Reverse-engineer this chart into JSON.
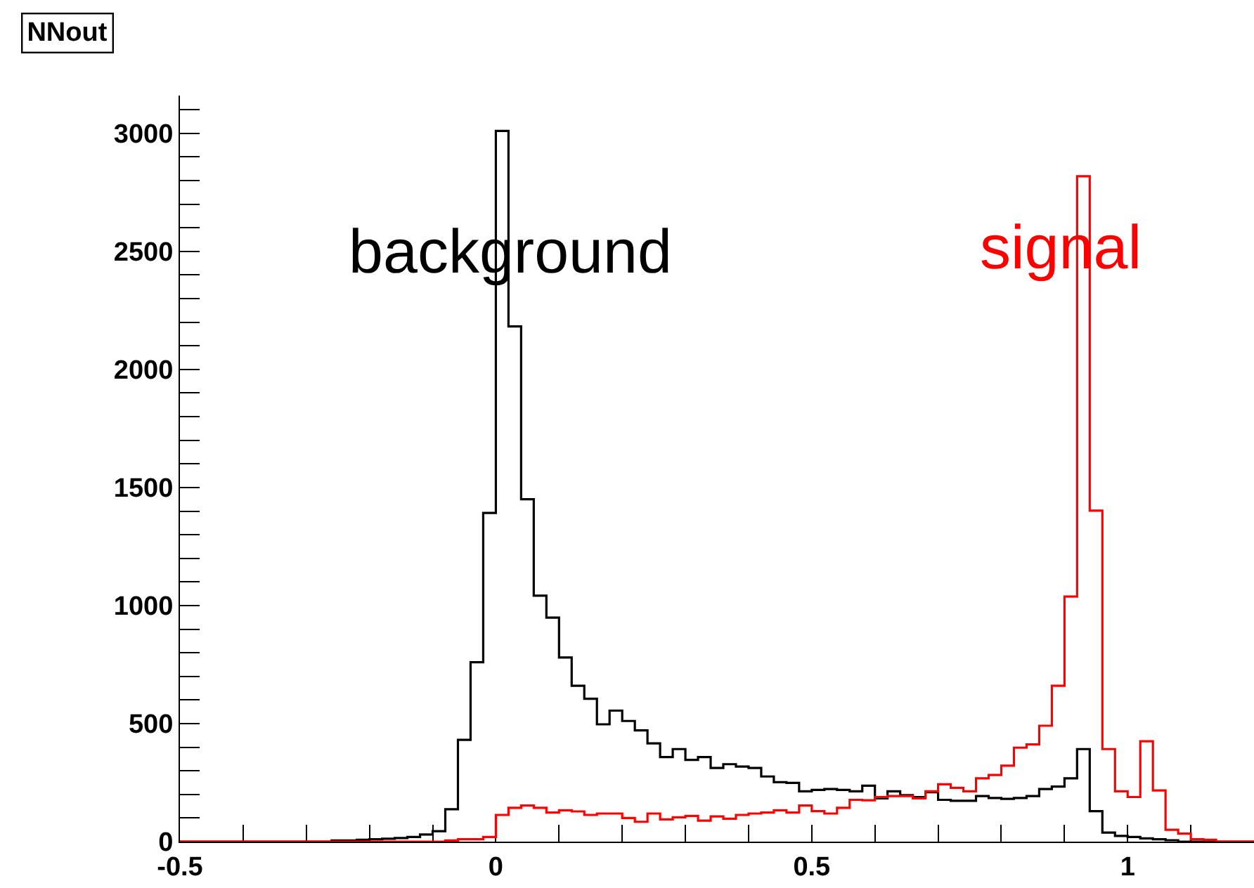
{
  "chart_data": {
    "type": "histogram",
    "title": "NNout",
    "bins": [
      -0.5,
      -0.48,
      -0.46,
      -0.44,
      -0.42,
      -0.4,
      -0.38,
      -0.36,
      -0.34,
      -0.32,
      -0.3,
      -0.28,
      -0.26,
      -0.24,
      -0.22,
      -0.2,
      -0.18,
      -0.16,
      -0.14,
      -0.12,
      -0.1,
      -0.08,
      -0.06,
      -0.04,
      -0.02,
      0,
      0.02,
      0.04,
      0.06,
      0.08,
      0.1,
      0.12,
      0.14,
      0.16,
      0.18,
      0.2,
      0.22,
      0.24,
      0.26,
      0.28,
      0.3,
      0.32,
      0.34,
      0.36,
      0.38,
      0.4,
      0.42,
      0.44,
      0.46,
      0.48,
      0.5,
      0.52,
      0.54,
      0.56,
      0.58,
      0.6,
      0.62,
      0.64,
      0.66,
      0.68,
      0.7,
      0.72,
      0.74,
      0.76,
      0.78,
      0.8,
      0.82,
      0.84,
      0.86,
      0.88,
      0.9,
      0.92,
      0.94,
      0.96,
      0.98,
      1,
      1.02,
      1.04,
      1.06,
      1.08,
      1.1,
      1.12,
      1.14,
      1.16,
      1.18,
      1.2
    ],
    "series": [
      {
        "name": "background",
        "color": "#000000",
        "values": [
          0,
          0,
          0,
          0,
          0,
          0,
          0,
          0,
          0,
          0,
          0,
          0,
          5,
          5,
          8,
          10,
          12,
          15,
          20,
          30,
          44,
          137,
          431,
          760,
          1392,
          3010,
          2182,
          1450,
          1042,
          949,
          780,
          660,
          605,
          497,
          555,
          511,
          471,
          416,
          358,
          392,
          346,
          358,
          312,
          328,
          318,
          312,
          276,
          252,
          249,
          213,
          219,
          223,
          219,
          213,
          237,
          183,
          213,
          197,
          189,
          209,
          177,
          173,
          173,
          193,
          185,
          181,
          185,
          193,
          223,
          233,
          268,
          392,
          129,
          38,
          24,
          20,
          14,
          10,
          6,
          0,
          0,
          0,
          0,
          0,
          0
        ]
      },
      {
        "name": "signal",
        "color": "#ff0000",
        "values": [
          0,
          0,
          0,
          0,
          0,
          0,
          0,
          0,
          0,
          0,
          0,
          0,
          0,
          0,
          0,
          0,
          0,
          0,
          0,
          0,
          0,
          5,
          10,
          10,
          20,
          113,
          143,
          153,
          143,
          123,
          133,
          128,
          113,
          119,
          119,
          100,
          84,
          119,
          94,
          103,
          109,
          89,
          107,
          97,
          113,
          119,
          123,
          133,
          123,
          153,
          129,
          119,
          143,
          177,
          175,
          189,
          193,
          193,
          183,
          213,
          243,
          228,
          213,
          268,
          282,
          322,
          398,
          412,
          491,
          660,
          1038,
          2818,
          1402,
          392,
          213,
          189,
          425,
          217,
          50,
          34,
          10,
          8,
          0,
          0,
          0
        ]
      }
    ],
    "xlim": [
      -0.5,
      1.2
    ],
    "xticks": [
      -0.5,
      {
        "value": -0.4,
        "label": null
      },
      {
        "value": -0.3,
        "label": null
      },
      {
        "value": -0.2,
        "label": null
      },
      {
        "value": -0.1,
        "label": null
      },
      0,
      {
        "value": 0.1,
        "label": null
      },
      {
        "value": 0.2,
        "label": null
      },
      {
        "value": 0.3,
        "label": null
      },
      {
        "value": 0.4,
        "label": null
      },
      0.5,
      {
        "value": 0.6,
        "label": null
      },
      {
        "value": 0.7,
        "label": null
      },
      {
        "value": 0.8,
        "label": null
      },
      {
        "value": 0.9,
        "label": null
      },
      1,
      {
        "value": 1.1,
        "label": null
      }
    ],
    "ylim": [
      0,
      3160
    ],
    "yticks": [
      0,
      {
        "value": 100,
        "label": null
      },
      {
        "value": 200,
        "label": null
      },
      {
        "value": 300,
        "label": null
      },
      {
        "value": 400,
        "label": null
      },
      500,
      {
        "value": 600,
        "label": null
      },
      {
        "value": 700,
        "label": null
      },
      {
        "value": 800,
        "label": null
      },
      {
        "value": 900,
        "label": null
      },
      1000,
      {
        "value": 1100,
        "label": null
      },
      {
        "value": 1200,
        "label": null
      },
      {
        "value": 1300,
        "label": null
      },
      {
        "value": 1400,
        "label": null
      },
      1500,
      {
        "value": 1600,
        "label": null
      },
      {
        "value": 1700,
        "label": null
      },
      {
        "value": 1800,
        "label": null
      },
      {
        "value": 1900,
        "label": null
      },
      2000,
      {
        "value": 2100,
        "label": null
      },
      {
        "value": 2200,
        "label": null
      },
      {
        "value": 2300,
        "label": null
      },
      {
        "value": 2400,
        "label": null
      },
      2500,
      {
        "value": 2600,
        "label": null
      },
      {
        "value": 2700,
        "label": null
      },
      {
        "value": 2800,
        "label": null
      },
      {
        "value": 2900,
        "label": null
      },
      3000,
      {
        "value": 3100,
        "label": null
      }
    ],
    "grid": false,
    "legend": false,
    "line_style": "solid",
    "marker": "none"
  }
}
